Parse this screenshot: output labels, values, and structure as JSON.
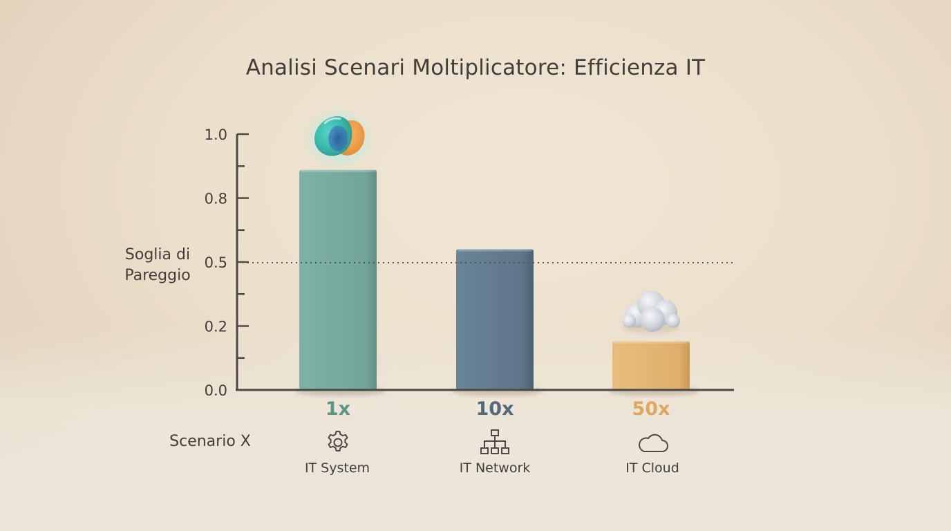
{
  "chart_data": {
    "type": "bar",
    "title": "Analisi Scenari Moltiplicatore: Efficienza IT",
    "xlabel": "Scenario X",
    "ylabel": "Soglia di Pareggio",
    "ylim": [
      0,
      1.0
    ],
    "ytick_labels": [
      "0.0",
      "0.2",
      "0.5",
      "0.8",
      "1.0"
    ],
    "categories": [
      "1x",
      "10x",
      "50x"
    ],
    "category_names": [
      "IT System",
      "IT Network",
      "IT Cloud"
    ],
    "category_icons": [
      "gear-icon",
      "network-icon",
      "cloud-icon"
    ],
    "values": [
      0.86,
      0.55,
      0.19
    ],
    "reference_line": {
      "value": 0.5,
      "style": "dotted"
    },
    "colors": [
      "#74a79c",
      "#5e7789",
      "#e0b16e"
    ],
    "label_colors": [
      "#5f9489",
      "#56697a",
      "#dfa760"
    ],
    "grid": false,
    "legend": "none"
  }
}
